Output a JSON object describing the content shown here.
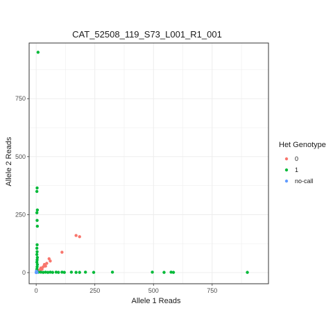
{
  "chart_data": {
    "type": "scatter",
    "title": "CAT_52508_119_S73_L001_R1_001",
    "xlabel": "Allele 1 Reads",
    "ylabel": "Allele 2 Reads",
    "xlim": [
      -30,
      990
    ],
    "ylim": [
      -48,
      990
    ],
    "x_ticks": [
      0,
      250,
      500,
      750
    ],
    "y_ticks": [
      0,
      250,
      500,
      750
    ],
    "grid": true,
    "legend": {
      "title": "Het Genotype",
      "position": "right"
    },
    "series": [
      {
        "name": "0",
        "color": "#F8766D",
        "points": [
          [
            170,
            160
          ],
          [
            185,
            155
          ],
          [
            110,
            88
          ],
          [
            55,
            60
          ],
          [
            60,
            50
          ],
          [
            45,
            40
          ],
          [
            35,
            35
          ],
          [
            40,
            28
          ],
          [
            30,
            25
          ],
          [
            20,
            20
          ],
          [
            25,
            15
          ],
          [
            15,
            12
          ],
          [
            10,
            10
          ],
          [
            18,
            8
          ],
          [
            12,
            5
          ],
          [
            8,
            6
          ],
          [
            5,
            3
          ]
        ]
      },
      {
        "name": "1",
        "color": "#00BA38",
        "points": [
          [
            8,
            950
          ],
          [
            4,
            365
          ],
          [
            3,
            350
          ],
          [
            5,
            270
          ],
          [
            3,
            258
          ],
          [
            4,
            225
          ],
          [
            5,
            200
          ],
          [
            4,
            120
          ],
          [
            3,
            105
          ],
          [
            4,
            90
          ],
          [
            3,
            78
          ],
          [
            5,
            65
          ],
          [
            4,
            55
          ],
          [
            3,
            45
          ],
          [
            5,
            35
          ],
          [
            4,
            25
          ],
          [
            3,
            15
          ],
          [
            2,
            8
          ],
          [
            10,
            2
          ],
          [
            20,
            2
          ],
          [
            30,
            1
          ],
          [
            40,
            2
          ],
          [
            50,
            1
          ],
          [
            60,
            2
          ],
          [
            70,
            1
          ],
          [
            85,
            2
          ],
          [
            95,
            1
          ],
          [
            110,
            2
          ],
          [
            120,
            1
          ],
          [
            150,
            2
          ],
          [
            170,
            1
          ],
          [
            185,
            1
          ],
          [
            210,
            2
          ],
          [
            245,
            1
          ],
          [
            325,
            2
          ],
          [
            495,
            2
          ],
          [
            545,
            1
          ],
          [
            575,
            2
          ],
          [
            585,
            1
          ],
          [
            900,
            1
          ]
        ]
      },
      {
        "name": "no-call",
        "color": "#619CFF",
        "points": [
          [
            0,
            0
          ],
          [
            2,
            1
          ],
          [
            1,
            3
          ],
          [
            3,
            2
          ],
          [
            1,
            6
          ],
          [
            4,
            1
          ]
        ]
      }
    ]
  }
}
